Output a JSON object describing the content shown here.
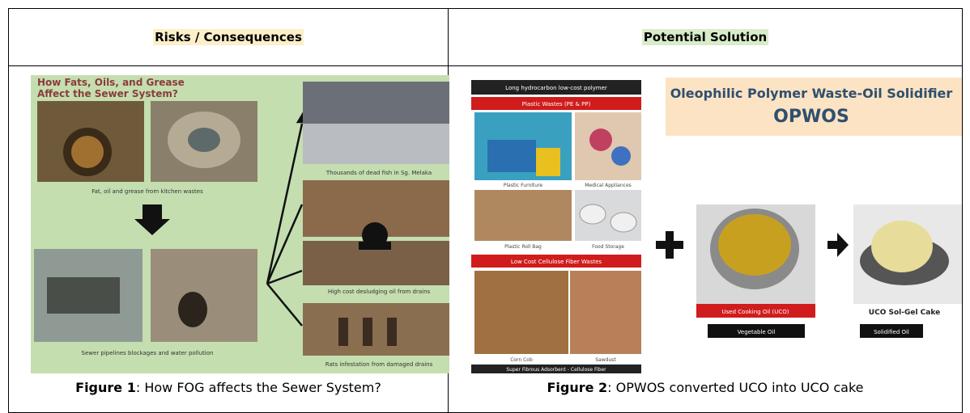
{
  "table": {
    "headers": [
      "Risks / Consequences",
      "Potential Solution"
    ],
    "cells": [
      {
        "figure_label": "Figure 1",
        "caption": ": How FOG affects the Sewer System?",
        "image_texts": {
          "title_line1": "How Fats, Oils, and Grease",
          "title_line2": "Affect the Sewer System?",
          "kitchen": "Fat, oil and grease from kitchen wastes",
          "blockage": "Sewer pipelines blockages and water pollution",
          "fish": "Thousands of dead fish in Sg. Melaka",
          "desludging": "High cost desludging oil from drains",
          "rats": "Rats infestation from damaged drains"
        }
      },
      {
        "figure_label": "Figure 2",
        "caption": ": OPWOS converted UCO into UCO cake",
        "image_texts": {
          "polymer": "Long hydrocarbon low-cost polymer",
          "plastic": "Plastic Wastes (PE & PP)",
          "furniture": "Plastic Furniture",
          "medical": "Medical Appliances",
          "rollbag": "Plastic Roll Bag",
          "food": "Food Storage",
          "cellulose": "Low Cost Cellulose Fiber Wastes",
          "corn": "Corn Cob",
          "sawdust": "Sawdust",
          "adsorbent": "Super Fibrous Adsorbent - Cellulose Fiber",
          "title_line1": "Oleophilic Polymer Waste-Oil Solidifier",
          "title_line2": "OPWOS",
          "uco": "Used Cooking Oil (UCO)",
          "veg": "Vegetable Oil",
          "cake": "UCO Sol-Gel Cake",
          "solid": "Solidified Oil"
        }
      }
    ]
  }
}
